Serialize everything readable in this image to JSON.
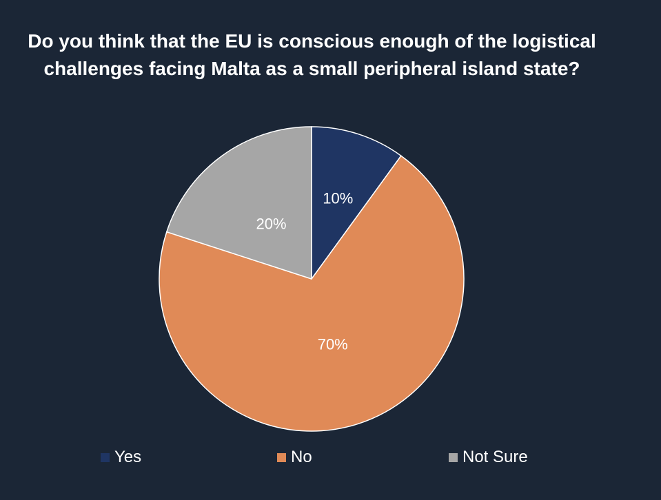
{
  "chart_data": {
    "type": "pie",
    "title": "Do you think that the EU is conscious enough of the logistical challenges facing Malta as a small peripheral island state?",
    "slices": [
      {
        "label": "Yes",
        "value": 10,
        "display": "10%",
        "color": "#1f3563"
      },
      {
        "label": "No",
        "value": 70,
        "display": "70%",
        "color": "#e08a57"
      },
      {
        "label": "Not Sure",
        "value": 20,
        "display": "20%",
        "color": "#a6a6a6"
      }
    ],
    "legend_position": "bottom",
    "start_angle": "12 o'clock, clockwise"
  },
  "colors": {
    "background": "#1b2636",
    "text": "#ffffff"
  }
}
